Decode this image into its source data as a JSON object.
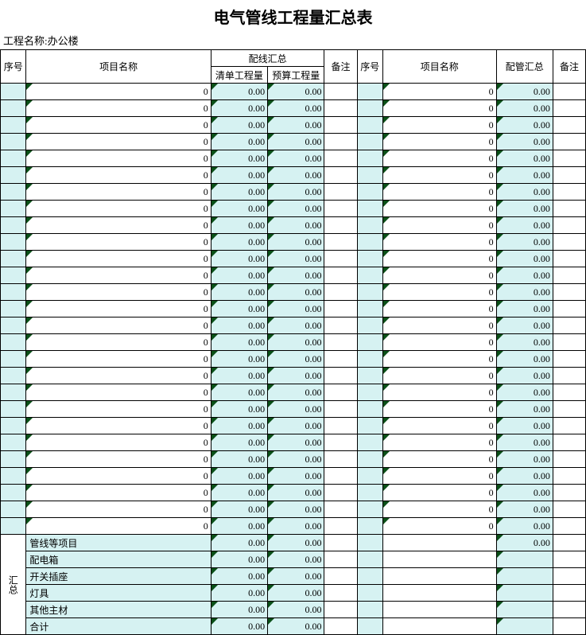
{
  "title": "电气管线工程量汇总表",
  "project_label": "工程名称:",
  "project_name": "办公楼",
  "colors": {
    "mint": "#d6f2f2",
    "border": "#000000",
    "triangle": "#0a5018",
    "background": "#ffffff"
  },
  "columns": {
    "seq": "序号",
    "name": "项目名称",
    "wiring_total": "配线汇总",
    "list_qty": "清单工程量",
    "budget_qty": "预算工程量",
    "remark": "备注",
    "seq2": "序号",
    "name2": "项目名称",
    "pipe_total": "配管汇总",
    "remark2": "备注"
  },
  "rows": [
    {
      "n1": "0",
      "qd": "0.00",
      "ys": "0.00",
      "n2": "0",
      "pg": "0.00"
    },
    {
      "n1": "0",
      "qd": "0.00",
      "ys": "0.00",
      "n2": "0",
      "pg": "0.00"
    },
    {
      "n1": "0",
      "qd": "0.00",
      "ys": "0.00",
      "n2": "0",
      "pg": "0.00"
    },
    {
      "n1": "0",
      "qd": "0.00",
      "ys": "0.00",
      "n2": "0",
      "pg": "0.00"
    },
    {
      "n1": "0",
      "qd": "0.00",
      "ys": "0.00",
      "n2": "0",
      "pg": "0.00"
    },
    {
      "n1": "0",
      "qd": "0.00",
      "ys": "0.00",
      "n2": "0",
      "pg": "0.00"
    },
    {
      "n1": "0",
      "qd": "0.00",
      "ys": "0.00",
      "n2": "0",
      "pg": "0.00"
    },
    {
      "n1": "0",
      "qd": "0.00",
      "ys": "0.00",
      "n2": "0",
      "pg": "0.00"
    },
    {
      "n1": "0",
      "qd": "0.00",
      "ys": "0.00",
      "n2": "0",
      "pg": "0.00"
    },
    {
      "n1": "0",
      "qd": "0.00",
      "ys": "0.00",
      "n2": "0",
      "pg": "0.00"
    },
    {
      "n1": "0",
      "qd": "0.00",
      "ys": "0.00",
      "n2": "0",
      "pg": "0.00"
    },
    {
      "n1": "0",
      "qd": "0.00",
      "ys": "0.00",
      "n2": "0",
      "pg": "0.00"
    },
    {
      "n1": "0",
      "qd": "0.00",
      "ys": "0.00",
      "n2": "0",
      "pg": "0.00"
    },
    {
      "n1": "0",
      "qd": "0.00",
      "ys": "0.00",
      "n2": "0",
      "pg": "0.00"
    },
    {
      "n1": "0",
      "qd": "0.00",
      "ys": "0.00",
      "n2": "0",
      "pg": "0.00"
    },
    {
      "n1": "0",
      "qd": "0.00",
      "ys": "0.00",
      "n2": "0",
      "pg": "0.00"
    },
    {
      "n1": "0",
      "qd": "0.00",
      "ys": "0.00",
      "n2": "0",
      "pg": "0.00"
    },
    {
      "n1": "0",
      "qd": "0.00",
      "ys": "0.00",
      "n2": "0",
      "pg": "0.00"
    },
    {
      "n1": "0",
      "qd": "0.00",
      "ys": "0.00",
      "n2": "0",
      "pg": "0.00"
    },
    {
      "n1": "0",
      "qd": "0.00",
      "ys": "0.00",
      "n2": "0",
      "pg": "0.00"
    },
    {
      "n1": "0",
      "qd": "0.00",
      "ys": "0.00",
      "n2": "0",
      "pg": "0.00"
    },
    {
      "n1": "0",
      "qd": "0.00",
      "ys": "0.00",
      "n2": "0",
      "pg": "0.00"
    },
    {
      "n1": "0",
      "qd": "0.00",
      "ys": "0.00",
      "n2": "0",
      "pg": "0.00"
    },
    {
      "n1": "0",
      "qd": "0.00",
      "ys": "0.00",
      "n2": "0",
      "pg": "0.00"
    },
    {
      "n1": "0",
      "qd": "0.00",
      "ys": "0.00",
      "n2": "0",
      "pg": "0.00"
    },
    {
      "n1": "0",
      "qd": "0.00",
      "ys": "0.00",
      "n2": "0",
      "pg": "0.00"
    },
    {
      "n1": "0",
      "qd": "0.00",
      "ys": "0.00",
      "n2": "0",
      "pg": "0.00"
    }
  ],
  "summary_label": "汇总",
  "summary_rows": [
    {
      "name": "管线等项目",
      "qd": "0.00",
      "ys": "0.00",
      "pg": "0.00"
    },
    {
      "name": "配电箱",
      "qd": "0.00",
      "ys": "0.00",
      "pg": ""
    },
    {
      "name": "开关插座",
      "qd": "0.00",
      "ys": "0.00",
      "pg": ""
    },
    {
      "name": "灯具",
      "qd": "0.00",
      "ys": "0.00",
      "pg": ""
    },
    {
      "name": "其他主材",
      "qd": "0.00",
      "ys": "0.00",
      "pg": ""
    },
    {
      "name": "合计",
      "qd": "0.00",
      "ys": "0.00",
      "pg": ""
    }
  ]
}
